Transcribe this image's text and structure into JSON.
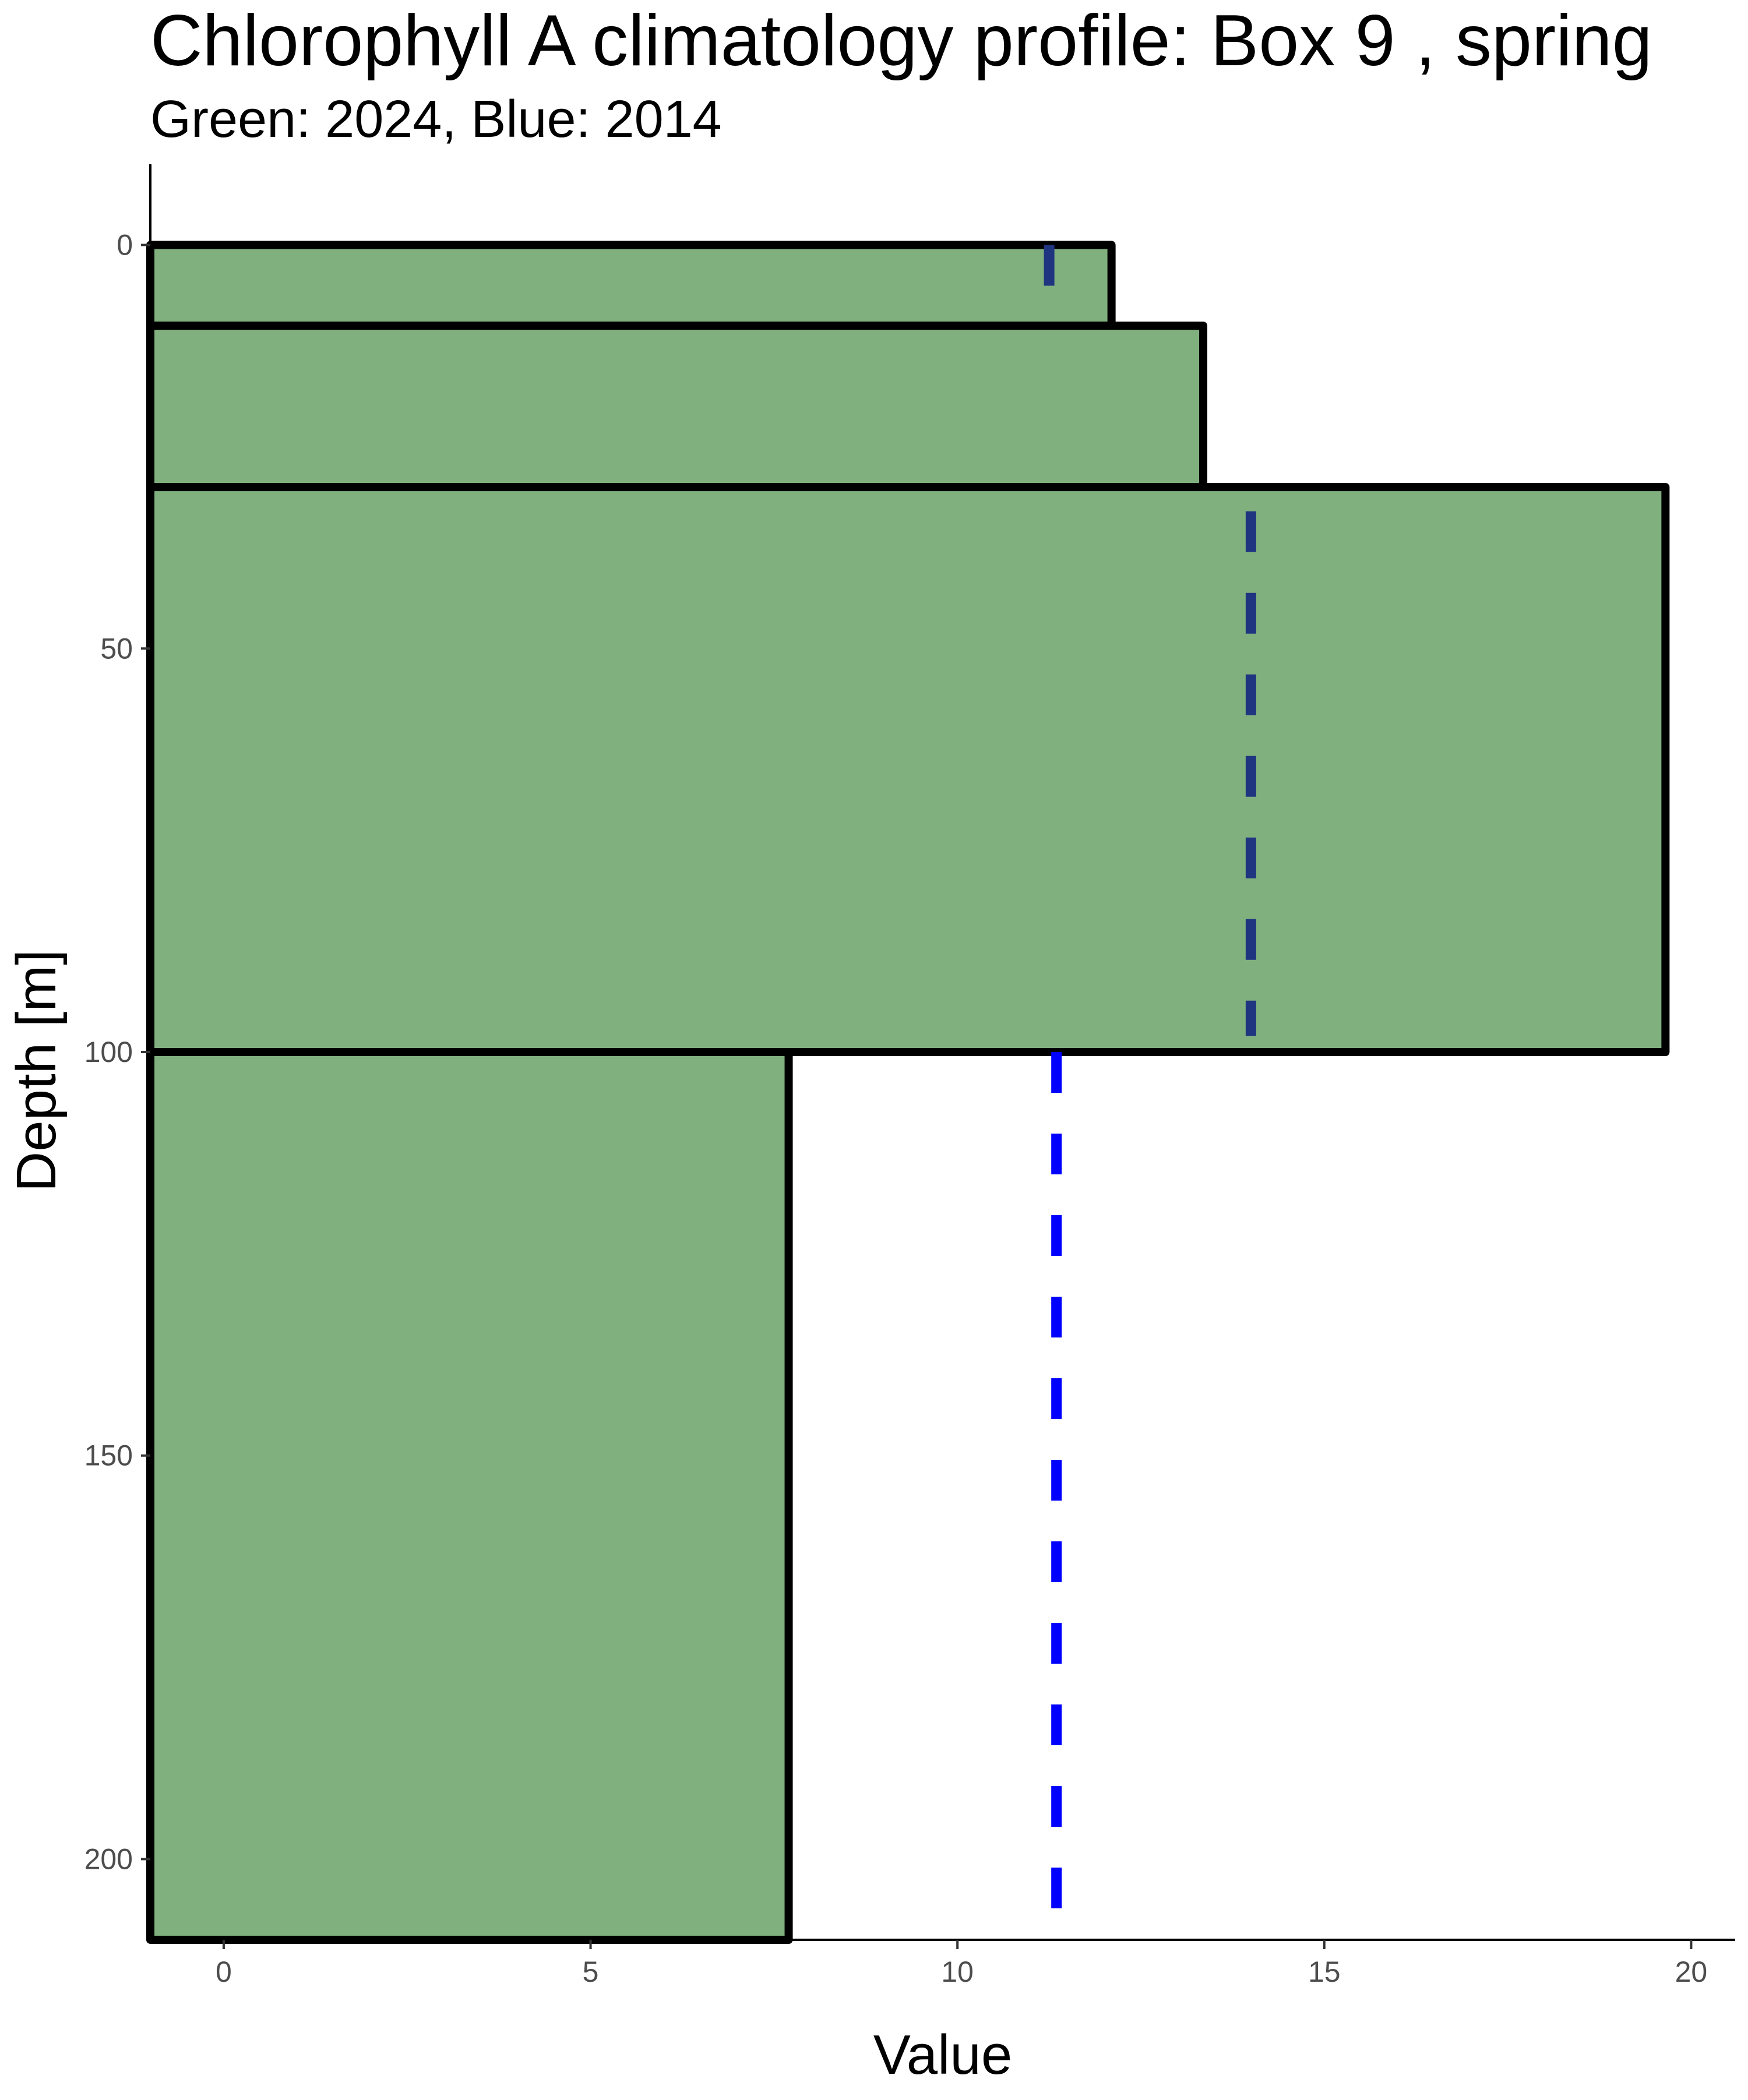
{
  "chart_data": {
    "type": "bar",
    "orientation": "horizontal",
    "title": "Chlorophyll A climatology profile: Box 9 , spring",
    "subtitle": "Green: 2024, Blue: 2014",
    "xlabel": "Value",
    "ylabel": "Depth [m]",
    "xlim": [
      -1,
      20.6
    ],
    "ylim": [
      -10,
      210
    ],
    "y_reversed": true,
    "grid": false,
    "x_ticks": [
      0,
      5,
      10,
      15,
      20
    ],
    "y_ticks": [
      0,
      50,
      100,
      150,
      200
    ],
    "series": [
      {
        "name": "2024",
        "kind": "depth-bars",
        "bars": [
          {
            "depth_top": 0,
            "depth_bottom": 10,
            "value": 12.1
          },
          {
            "depth_top": 10,
            "depth_bottom": 30,
            "value": 13.35
          },
          {
            "depth_top": 30,
            "depth_bottom": 100,
            "value": 19.65
          },
          {
            "depth_top": 100,
            "depth_bottom": 210,
            "value": 7.7
          }
        ]
      },
      {
        "name": "2014",
        "kind": "dashed-segments",
        "segments": [
          {
            "depth_top": 0,
            "depth_bottom": 10,
            "value": 11.25
          },
          {
            "depth_top": 33,
            "depth_bottom": 98,
            "value": 14.0
          },
          {
            "depth_top": 100,
            "depth_bottom": 210,
            "value": 11.35
          }
        ]
      }
    ],
    "colors": {
      "fill_2024": "#80b07e",
      "bar_outline": "#000000",
      "dash_upper": "#1f3580",
      "dash_deep": "#0000ff",
      "tick_text": "#4d4d4d"
    }
  }
}
